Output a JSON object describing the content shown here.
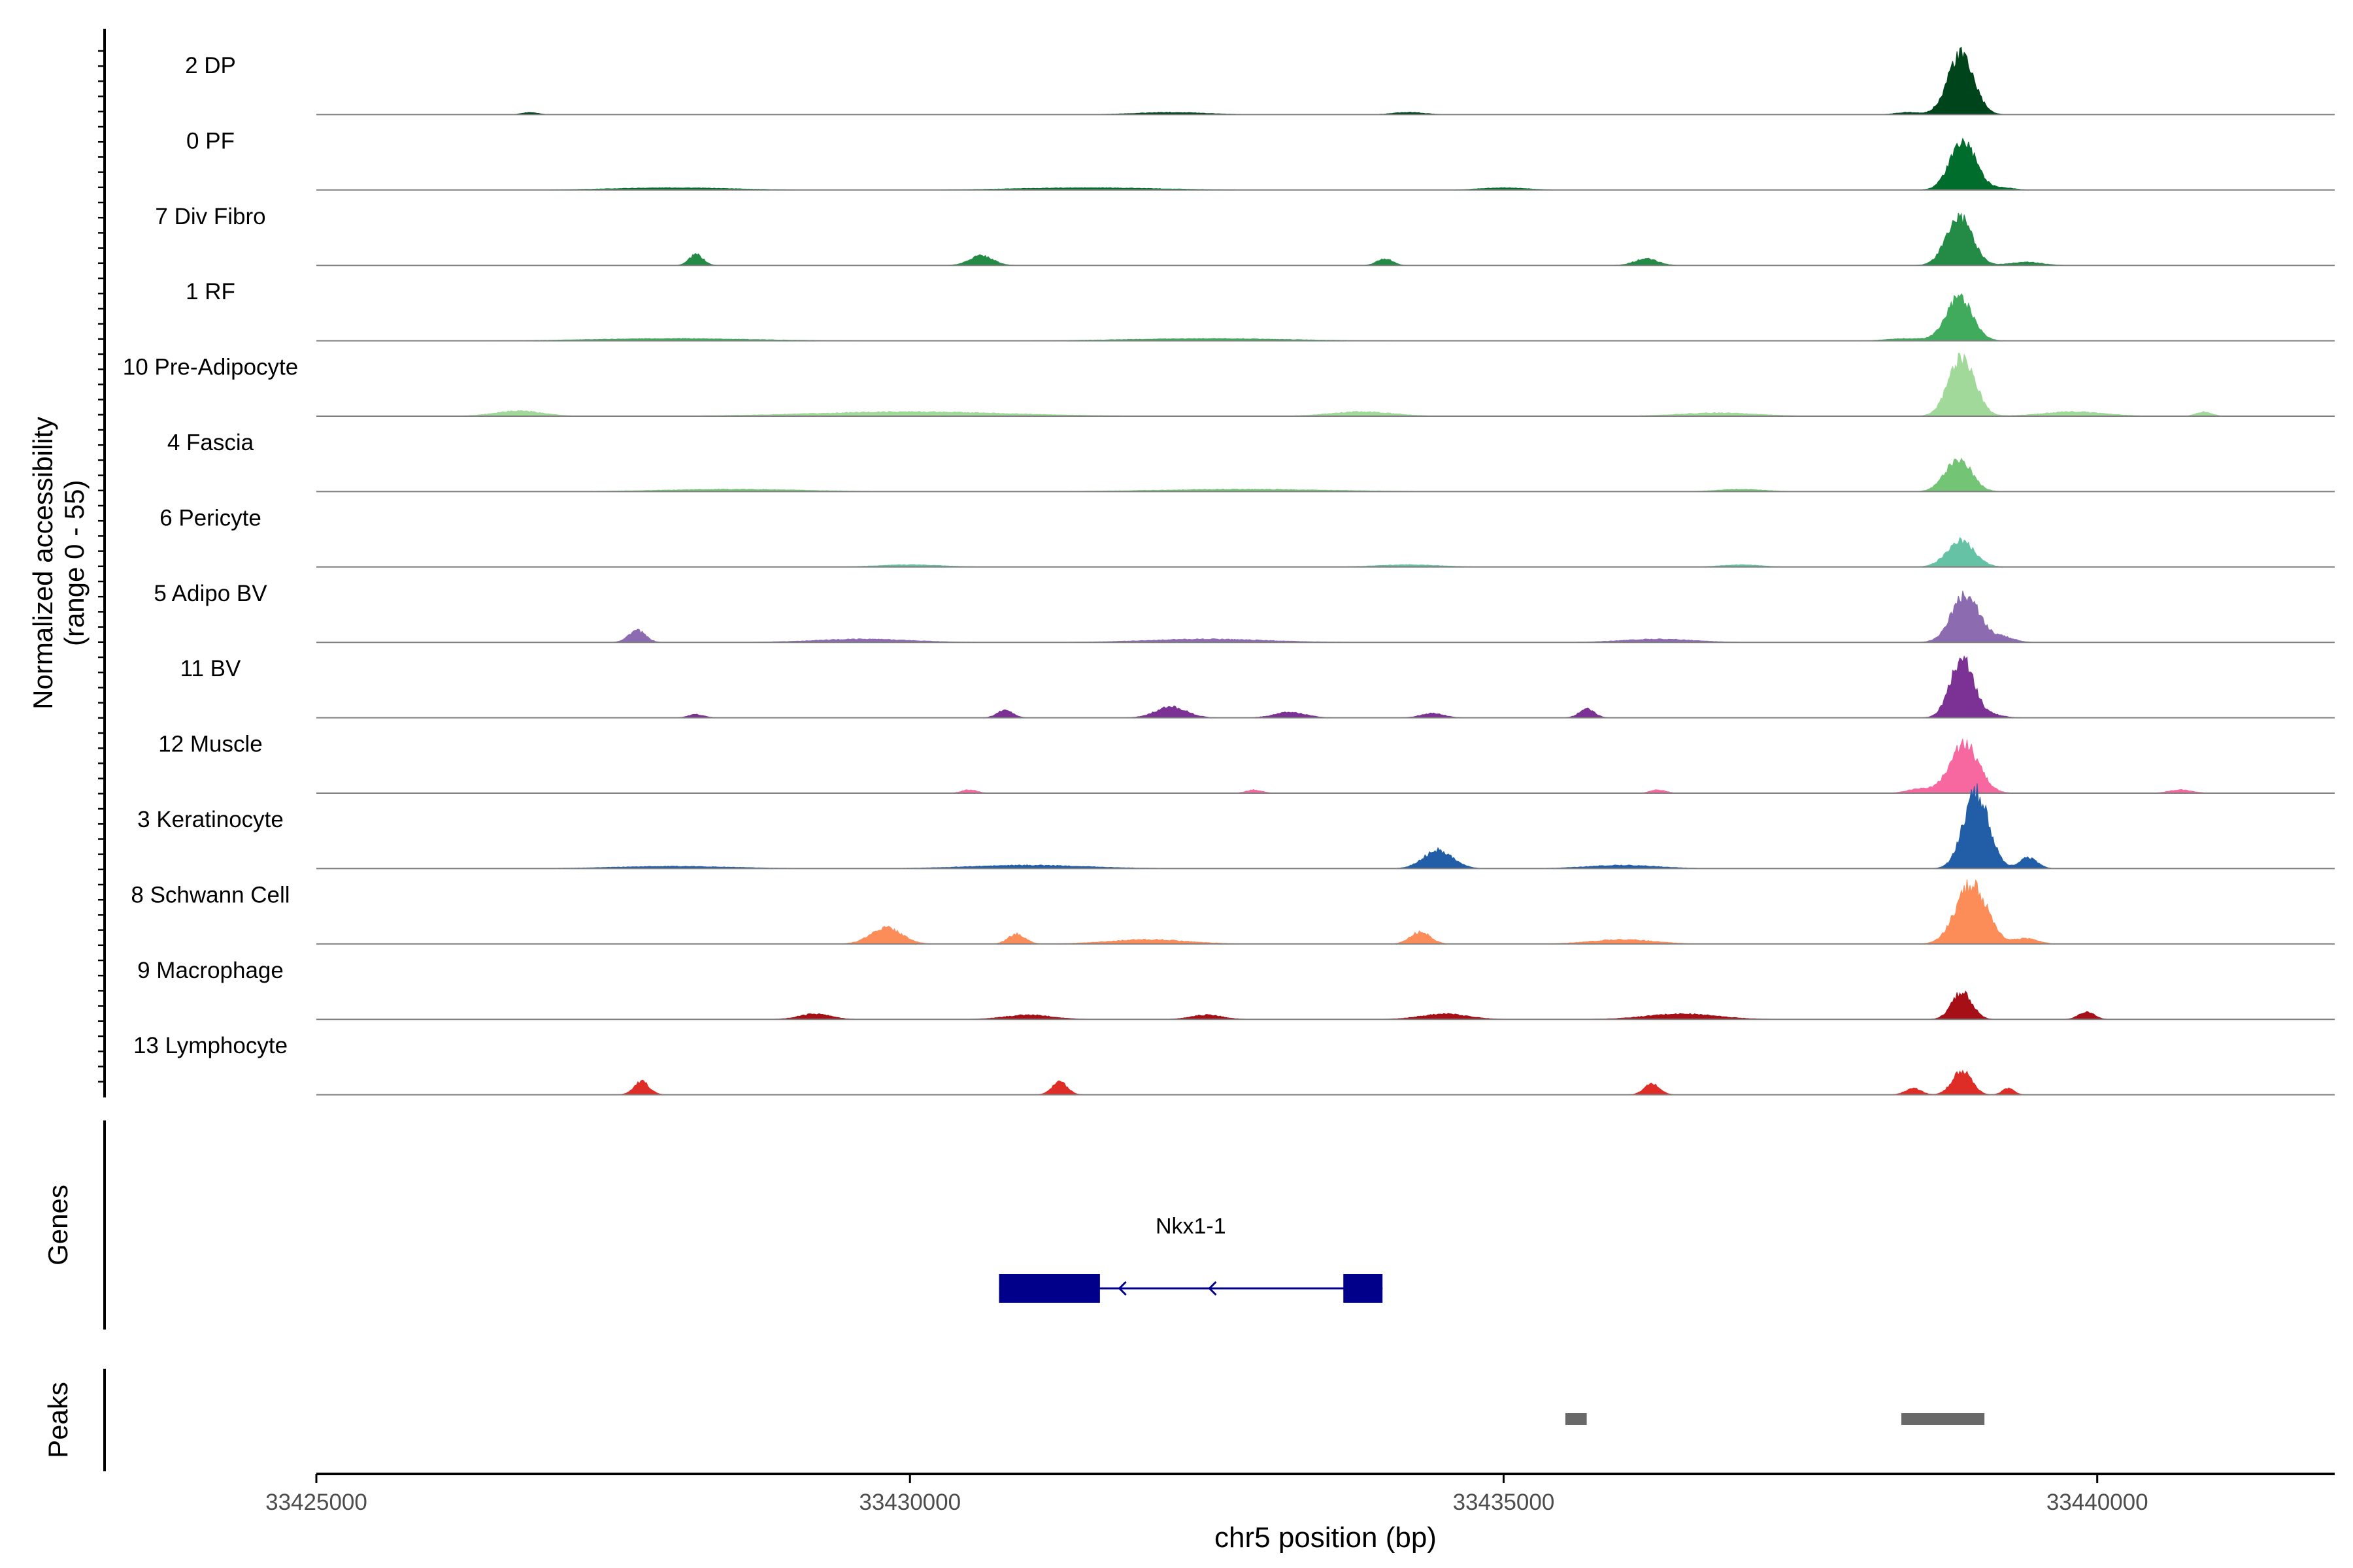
{
  "chart_data": {
    "type": "area",
    "chromosome": "chr5",
    "xlim": [
      33425000,
      33442000
    ],
    "x_ticks": [
      33425000,
      33430000,
      33435000,
      33440000
    ],
    "x_tick_labels": [
      "33425000",
      "33430000",
      "33435000",
      "33440000"
    ],
    "xlabel": "chr5 position (bp)",
    "ylabel": "Normalized accessibility",
    "ylabel_range": "(range 0 - 55)",
    "ylim": [
      0,
      55
    ],
    "grid": false,
    "legend": "none",
    "tracks": [
      {
        "name": "2 DP",
        "color": "#00441b",
        "peaks": [
          [
            33438850,
            55,
            340
          ],
          [
            33426800,
            2,
            200
          ],
          [
            33432200,
            2,
            900
          ],
          [
            33434200,
            2,
            400
          ],
          [
            33438400,
            2,
            300
          ]
        ]
      },
      {
        "name": "0 PF",
        "color": "#006d2c",
        "peaks": [
          [
            33438870,
            44,
            340
          ],
          [
            33428000,
            2,
            1500
          ],
          [
            33431500,
            2,
            1800
          ],
          [
            33435000,
            2,
            600
          ],
          [
            33439200,
            2,
            300
          ]
        ]
      },
      {
        "name": "7 Div Fibro",
        "color": "#238b45",
        "peaks": [
          [
            33438840,
            44,
            340
          ],
          [
            33428200,
            10,
            180
          ],
          [
            33430600,
            9,
            300
          ],
          [
            33434000,
            6,
            200
          ],
          [
            33436200,
            6,
            300
          ],
          [
            33439400,
            3,
            400
          ]
        ]
      },
      {
        "name": "1 RF",
        "color": "#41ab5d",
        "peaks": [
          [
            33438840,
            40,
            340
          ],
          [
            33428000,
            2,
            2000
          ],
          [
            33432500,
            2,
            2000
          ],
          [
            33438400,
            2,
            500
          ]
        ]
      },
      {
        "name": "10 Pre-Adipocyte",
        "color": "#a1d99b",
        "peaks": [
          [
            33438860,
            55,
            340
          ],
          [
            33426700,
            5,
            600
          ],
          [
            33430000,
            4,
            2500
          ],
          [
            33433800,
            4,
            800
          ],
          [
            33436800,
            3,
            1000
          ],
          [
            33439800,
            4,
            800
          ],
          [
            33440900,
            4,
            200
          ]
        ]
      },
      {
        "name": "4 Fascia",
        "color": "#74c476",
        "peaks": [
          [
            33438830,
            30,
            340
          ],
          [
            33428500,
            2,
            1800
          ],
          [
            33432800,
            2,
            2200
          ],
          [
            33437000,
            2,
            600
          ]
        ]
      },
      {
        "name": "6 Pericyte",
        "color": "#66c2a4",
        "peaks": [
          [
            33438850,
            24,
            360
          ],
          [
            33430000,
            2,
            800
          ],
          [
            33434200,
            2,
            800
          ],
          [
            33437000,
            2,
            500
          ]
        ]
      },
      {
        "name": "5 Adipo BV",
        "color": "#8c6bb1",
        "peaks": [
          [
            33438890,
            44,
            360
          ],
          [
            33427700,
            11,
            220
          ],
          [
            33429600,
            3,
            1200
          ],
          [
            33432500,
            3,
            1500
          ],
          [
            33436300,
            3,
            900
          ],
          [
            33439200,
            5,
            300
          ]
        ]
      },
      {
        "name": "11 BV",
        "color": "#7b3294",
        "peaks": [
          [
            33438860,
            55,
            300
          ],
          [
            33428200,
            3,
            200
          ],
          [
            33430800,
            7,
            200
          ],
          [
            33432200,
            10,
            400
          ],
          [
            33433200,
            5,
            400
          ],
          [
            33434400,
            4,
            300
          ],
          [
            33435700,
            8,
            200
          ],
          [
            33439100,
            3,
            300
          ]
        ]
      },
      {
        "name": "12 Muscle",
        "color": "#f768a1",
        "peaks": [
          [
            33438880,
            45,
            380
          ],
          [
            33430500,
            3,
            200
          ],
          [
            33432900,
            3,
            200
          ],
          [
            33436300,
            3,
            200
          ],
          [
            33438500,
            4,
            300
          ],
          [
            33440700,
            3,
            300
          ]
        ]
      },
      {
        "name": "3 Keratinocyte",
        "color": "#225ea8",
        "peaks": [
          [
            33438980,
            70,
            330
          ],
          [
            33434450,
            17,
            380
          ],
          [
            33439420,
            10,
            230
          ],
          [
            33431000,
            3,
            1500
          ],
          [
            33436000,
            3,
            900
          ],
          [
            33428000,
            2,
            1500
          ]
        ]
      },
      {
        "name": "8 Schwann Cell",
        "color": "#fc8d59",
        "peaks": [
          [
            33438940,
            55,
            400
          ],
          [
            33429800,
            15,
            400
          ],
          [
            33430900,
            9,
            220
          ],
          [
            33434300,
            11,
            260
          ],
          [
            33432000,
            4,
            1000
          ],
          [
            33436000,
            4,
            800
          ],
          [
            33439400,
            5,
            300
          ]
        ]
      },
      {
        "name": "9 Macrophage",
        "color": "#a50f15",
        "peaks": [
          [
            33438860,
            25,
            260
          ],
          [
            33439910,
            7,
            200
          ],
          [
            33429200,
            5,
            400
          ],
          [
            33431000,
            4,
            600
          ],
          [
            33432500,
            4,
            400
          ],
          [
            33434500,
            5,
            600
          ],
          [
            33436500,
            5,
            900
          ]
        ]
      },
      {
        "name": "13 Lymphocyte",
        "color": "#de2d26",
        "peaks": [
          [
            33438860,
            22,
            250
          ],
          [
            33427740,
            12,
            200
          ],
          [
            33431260,
            12,
            200
          ],
          [
            33436250,
            10,
            200
          ],
          [
            33438450,
            6,
            200
          ],
          [
            33439250,
            6,
            150
          ]
        ]
      }
    ],
    "genes_track": {
      "label": "Genes",
      "color": "#00008b",
      "genes": [
        {
          "name": "Nkx1-1",
          "strand": "-",
          "start": 33430750,
          "end": 33433980,
          "exons": [
            [
              33430750,
              33431600
            ],
            [
              33433650,
              33433980
            ]
          ]
        }
      ]
    },
    "peaks_track": {
      "label": "Peaks",
      "color": "#696969",
      "peaks": [
        [
          33435520,
          33435700
        ],
        [
          33438350,
          33439050
        ]
      ]
    }
  }
}
